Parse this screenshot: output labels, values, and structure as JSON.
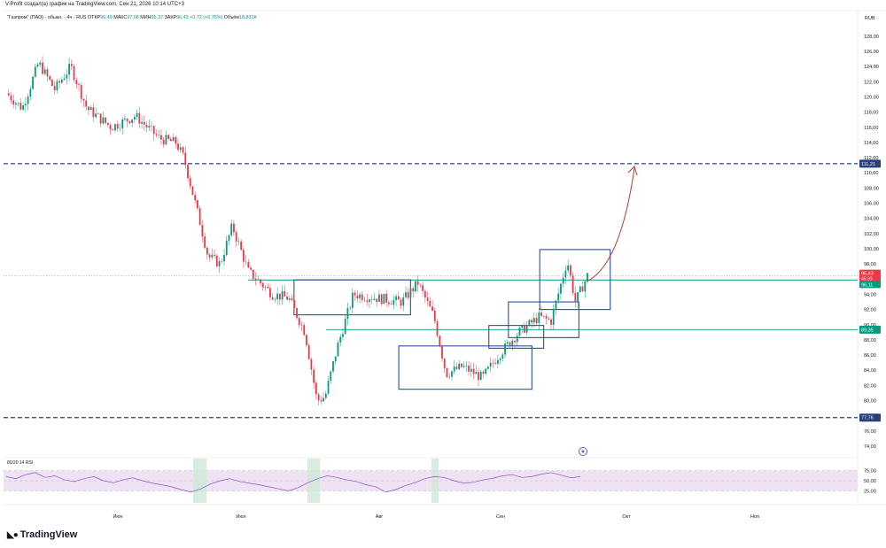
{
  "header": {
    "created_by": "V-Profit создал(а) график на TradingView.com, Сен 21, 2026 10:14 UTC+3"
  },
  "legend": {
    "symbol": "\"Газпром\" (ПАО) - обыкн. · 4ч · RUS",
    "open_label": "ОТКР",
    "open": "96,49",
    "high_label": "МАКС",
    "high": "97,08",
    "low_label": "МИН",
    "low": "95,37",
    "close_label": "ЗАКР",
    "close": "96,43",
    "change": "+0,72 (+0,75%)",
    "volume_label": "Объём",
    "volume": "18,831К"
  },
  "rsi_label": "80/20 14 RSI",
  "brand": "TradingView",
  "colors": {
    "up": "#089981",
    "down": "#f23645",
    "box": "#2a4fa8",
    "level": "#2a3f7a",
    "hline_green": "#089981",
    "arrow": "#c0392b",
    "rsi_fill": "#efe3f3",
    "rsi_line": "#7e57c2"
  },
  "chart_data": {
    "type": "candlestick",
    "currency": "RUB",
    "x_tick_labels": [
      "Июн",
      "Июл",
      "Авг",
      "Сен",
      "Окт",
      "Ноя"
    ],
    "y_tick_labels": [
      "128,00",
      "126,00",
      "124,00",
      "122,00",
      "120,00",
      "118,00",
      "116,00",
      "114,00",
      "112,00",
      "110,00",
      "108,00",
      "106,00",
      "104,00",
      "102,00",
      "100,00",
      "98,00",
      "96,00",
      "94,00",
      "92,00",
      "90,00",
      "88,00",
      "86,00",
      "84,00",
      "82,00",
      "80,00",
      "78,00",
      "76,00",
      "74,00"
    ],
    "ylim": [
      72.6,
      129.5
    ],
    "price_path": [
      {
        "x": 0,
        "y": 120.5
      },
      {
        "x": 0.02,
        "y": 118.5
      },
      {
        "x": 0.04,
        "y": 124.5
      },
      {
        "x": 0.06,
        "y": 121.0
      },
      {
        "x": 0.08,
        "y": 124.0
      },
      {
        "x": 0.1,
        "y": 118.5
      },
      {
        "x": 0.13,
        "y": 116.0
      },
      {
        "x": 0.16,
        "y": 117.5
      },
      {
        "x": 0.19,
        "y": 114.5
      },
      {
        "x": 0.21,
        "y": 114.0
      },
      {
        "x": 0.22,
        "y": 112.0
      },
      {
        "x": 0.24,
        "y": 103.5
      },
      {
        "x": 0.25,
        "y": 99.0
      },
      {
        "x": 0.265,
        "y": 98.0
      },
      {
        "x": 0.28,
        "y": 103.0
      },
      {
        "x": 0.3,
        "y": 97.0
      },
      {
        "x": 0.33,
        "y": 94.0
      },
      {
        "x": 0.35,
        "y": 93.5
      },
      {
        "x": 0.37,
        "y": 89.0
      },
      {
        "x": 0.385,
        "y": 80.0
      },
      {
        "x": 0.395,
        "y": 80.5
      },
      {
        "x": 0.41,
        "y": 87.0
      },
      {
        "x": 0.43,
        "y": 94.0
      },
      {
        "x": 0.46,
        "y": 93.5
      },
      {
        "x": 0.49,
        "y": 93.0
      },
      {
        "x": 0.51,
        "y": 95.5
      },
      {
        "x": 0.53,
        "y": 91.0
      },
      {
        "x": 0.545,
        "y": 83.5
      },
      {
        "x": 0.565,
        "y": 84.5
      },
      {
        "x": 0.59,
        "y": 83.0
      },
      {
        "x": 0.61,
        "y": 86.0
      },
      {
        "x": 0.635,
        "y": 89.0
      },
      {
        "x": 0.66,
        "y": 91.0
      },
      {
        "x": 0.675,
        "y": 90.5
      },
      {
        "x": 0.695,
        "y": 98.5
      },
      {
        "x": 0.705,
        "y": 93.0
      },
      {
        "x": 0.72,
        "y": 96.43
      }
    ],
    "horizontal_levels": [
      {
        "value": 111.21,
        "label": "111,21",
        "style": "dashed",
        "color": "#2a3f7a"
      },
      {
        "value": 77.76,
        "label": "77,76",
        "style": "dashed",
        "color": "#2a3f7a"
      },
      {
        "value": 95.89,
        "label": "",
        "style": "solid",
        "color": "#089981"
      },
      {
        "value": 89.35,
        "label": "89,35",
        "style": "solid",
        "color": "#089981"
      }
    ],
    "price_labels": [
      {
        "value": 96.43,
        "label": "96,43",
        "sub": "45:33",
        "color": "#f23645"
      },
      {
        "value": 96.11,
        "label": "96,11",
        "color": "#089981"
      }
    ],
    "boxes": [
      {
        "x1": "Июн+45",
        "x2": "Авг+8",
        "y_high": 95.9,
        "y_low": 91.3
      },
      {
        "x1": "Авг+5",
        "x2": "Сен+8",
        "y_high": 87.2,
        "y_low": 81.5
      },
      {
        "x1": "Авг+28",
        "x2": "Сен+11",
        "y_high": 89.9,
        "y_low": 86.9
      },
      {
        "x1": "Сен+2",
        "x2": "Сен+20",
        "y_high": 93.0,
        "y_low": 88.3
      },
      {
        "x1": "Сен+10",
        "x2": "Сен+28",
        "y_high": 99.9,
        "y_low": 92.0
      }
    ],
    "projection_target": 111.21,
    "rsi": {
      "levels": [
        "75,00",
        "50,00",
        "25,00"
      ],
      "values": [
        60,
        55,
        65,
        70,
        58,
        62,
        52,
        48,
        55,
        60,
        50,
        45,
        52,
        57,
        50,
        44,
        40,
        35,
        28,
        22,
        30,
        42,
        50,
        55,
        48,
        44,
        40,
        35,
        30,
        25,
        33,
        45,
        55,
        62,
        58,
        52,
        48,
        40,
        35,
        22,
        28,
        38,
        45,
        55,
        60,
        58,
        50,
        44,
        46,
        52,
        56,
        62,
        65,
        58,
        60,
        66,
        70,
        64,
        57,
        60
      ]
    }
  }
}
